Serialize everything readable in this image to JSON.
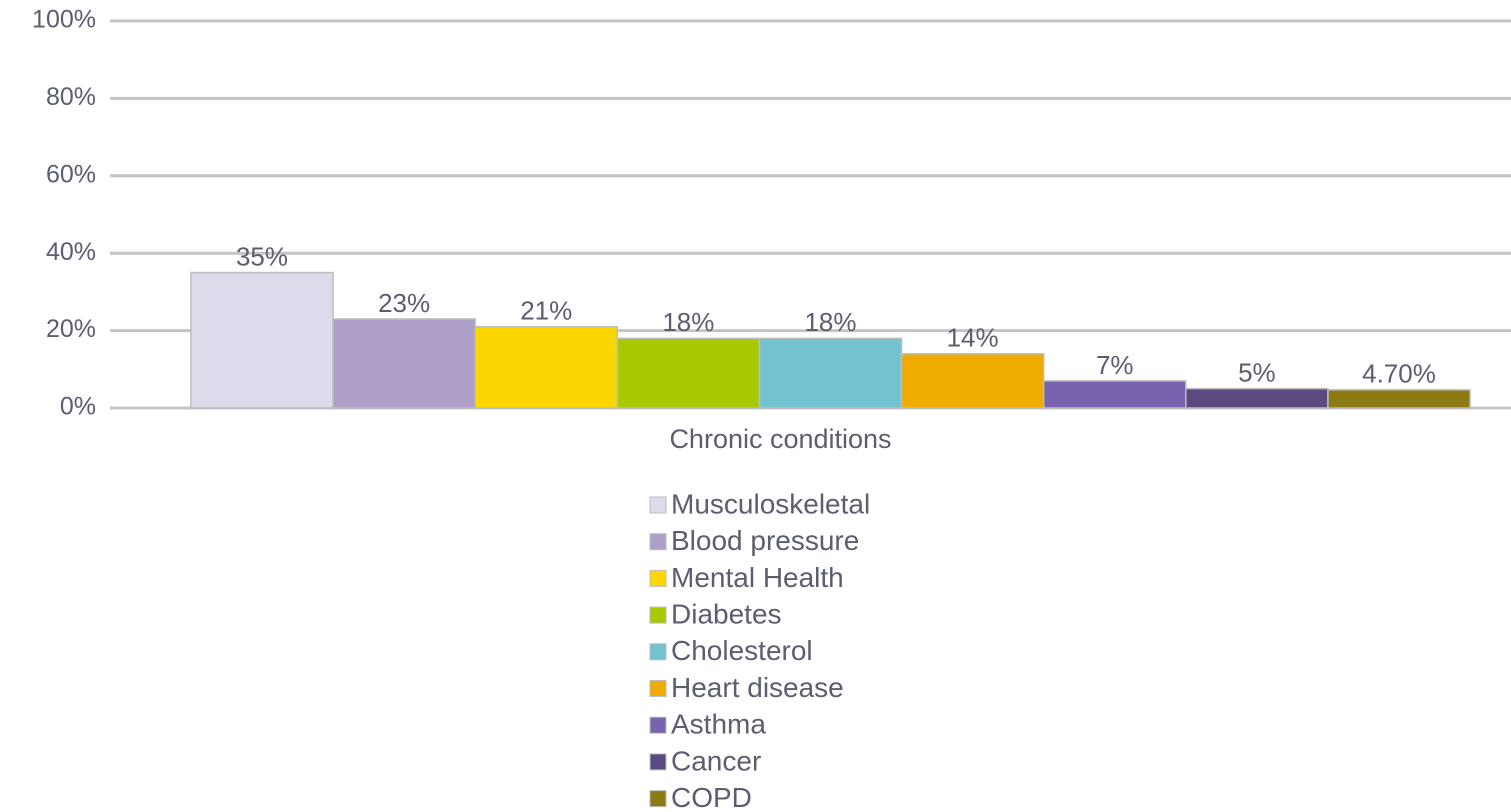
{
  "chart_data": {
    "type": "bar",
    "categories": [
      "Chronic conditions"
    ],
    "series": [
      {
        "name": "Musculoskeletal",
        "color": "#dddbeb",
        "values": [
          35
        ],
        "value_labels": [
          "35%"
        ]
      },
      {
        "name": "Blood pressure",
        "color": "#ae9fc9",
        "values": [
          23
        ],
        "value_labels": [
          "23%"
        ]
      },
      {
        "name": "Mental Health",
        "color": "#fcd600",
        "values": [
          21
        ],
        "value_labels": [
          "21%"
        ]
      },
      {
        "name": "Diabetes",
        "color": "#a8c800",
        "values": [
          18
        ],
        "value_labels": [
          "18%"
        ]
      },
      {
        "name": "Cholesterol",
        "color": "#72c3cf",
        "values": [
          18
        ],
        "value_labels": [
          "18%"
        ]
      },
      {
        "name": "Heart disease",
        "color": "#f0ab00",
        "values": [
          14
        ],
        "value_labels": [
          "14%"
        ]
      },
      {
        "name": "Asthma",
        "color": "#7963ae",
        "values": [
          7
        ],
        "value_labels": [
          "7%"
        ]
      },
      {
        "name": "Cancer",
        "color": "#5b4a82",
        "values": [
          5
        ],
        "value_labels": [
          "5%"
        ]
      },
      {
        "name": "COPD",
        "color": "#8b7b12",
        "values": [
          4.7
        ],
        "value_labels": [
          "4.70%"
        ]
      }
    ],
    "ylim": [
      0,
      100
    ],
    "yticks": [
      {
        "value": 0,
        "label": "0%"
      },
      {
        "value": 20,
        "label": "20%"
      },
      {
        "value": 40,
        "label": "40%"
      },
      {
        "value": 60,
        "label": "60%"
      },
      {
        "value": 80,
        "label": "80%"
      },
      {
        "value": 100,
        "label": "100%"
      }
    ],
    "grid": true,
    "legend": "bottom"
  }
}
